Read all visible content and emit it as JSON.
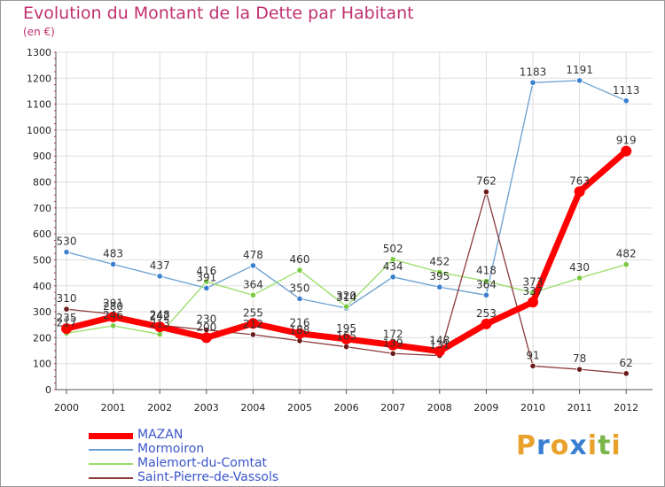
{
  "header": {
    "title": "Evolution du Montant de la Dette par Habitant",
    "unit": "(en €)"
  },
  "brand": {
    "letters": [
      "P",
      "r",
      "o",
      "x",
      "i",
      "t",
      "i"
    ],
    "colors": [
      "#e8a22c",
      "#3a7fd0",
      "#e8a22c",
      "#3a7fd0",
      "#e8a22c",
      "#7ab648",
      "#e8a22c"
    ]
  },
  "chart_data": {
    "type": "line",
    "title": "Evolution du Montant de la Dette par Habitant",
    "ylabel": "(en €)",
    "x": [
      "2000",
      "2001",
      "2002",
      "2003",
      "2004",
      "2005",
      "2006",
      "2007",
      "2008",
      "2009",
      "2010",
      "2011",
      "2012"
    ],
    "ylim": [
      0,
      1300
    ],
    "yticks": [
      "0",
      "100",
      "200",
      "300",
      "400",
      "500",
      "600",
      "700",
      "800",
      "900",
      "1000",
      "1100",
      "1200",
      "1300"
    ],
    "grid": true,
    "legend": "bottom-left",
    "series": [
      {
        "name": "MAZAN",
        "color": "#ff0000",
        "marker": "#ff0000",
        "width": 7,
        "values": [
          235,
          280,
          242,
          200,
          255,
          216,
          195,
          172,
          148,
          253,
          337,
          763,
          919
        ]
      },
      {
        "name": "Mormoiron",
        "color": "#6a9fd0",
        "marker": "#3a7fd0",
        "width": 1.3,
        "values": [
          530,
          483,
          437,
          391,
          478,
          350,
          314,
          434,
          395,
          364,
          1183,
          1191,
          1113
        ]
      },
      {
        "name": "Malemort-du-Comtat",
        "color": "#99dd66",
        "marker": "#7ac943",
        "width": 1.3,
        "values": [
          217,
          246,
          213,
          416,
          364,
          460,
          320,
          502,
          452,
          418,
          373,
          430,
          482
        ]
      },
      {
        "name": "Saint-Pierre-de-Vassols",
        "color": "#8b3a3a",
        "marker": "#6b1a1a",
        "width": 1.3,
        "values": [
          310,
          291,
          248,
          230,
          212,
          188,
          165,
          139,
          131,
          762,
          91,
          78,
          62
        ]
      }
    ]
  }
}
